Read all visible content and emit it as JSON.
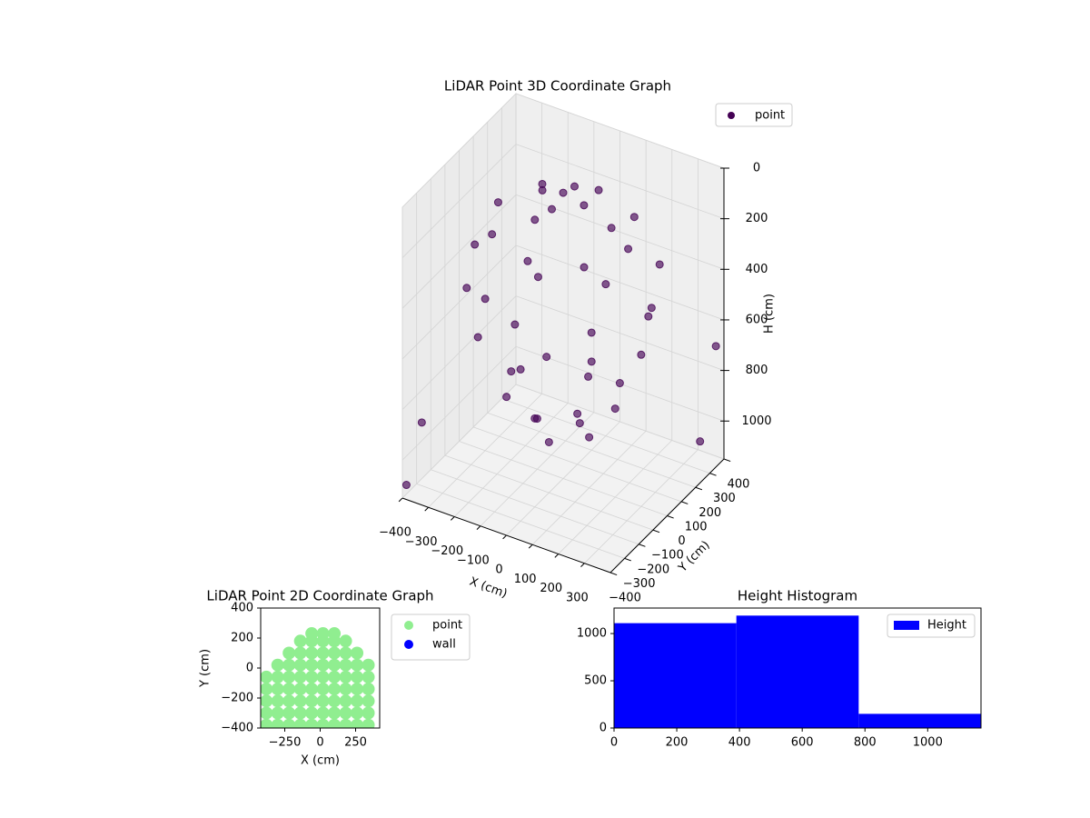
{
  "chart_data": [
    {
      "type": "scatter3d",
      "title": "LiDAR Point 3D Coordinate Graph",
      "x_label": "X (cm)",
      "y_label": "Y (cm)",
      "z_label": "H (cm)",
      "series": [
        {
          "name": "point",
          "color": "#440154",
          "x": [
            0,
            80,
            -80,
            0,
            0,
            250,
            177,
            0,
            -177,
            -250,
            -177,
            0,
            177,
            340,
            240,
            0,
            -240,
            -340,
            -240,
            0,
            240,
            300,
            212,
            0,
            -212,
            -300,
            -212,
            0,
            212,
            200,
            141,
            0,
            -141,
            -200,
            -141,
            0,
            141,
            100,
            0,
            -100,
            0,
            -380,
            -390,
            380,
            390
          ],
          "y": [
            0,
            0,
            0,
            80,
            -80,
            0,
            177,
            250,
            177,
            0,
            -177,
            -250,
            -177,
            0,
            240,
            340,
            240,
            0,
            -240,
            -340,
            -240,
            0,
            212,
            300,
            212,
            0,
            -212,
            -300,
            -212,
            0,
            141,
            200,
            141,
            0,
            -141,
            -200,
            -141,
            0,
            100,
            0,
            -100,
            -300,
            -390,
            380,
            250
          ],
          "h": [
            20,
            40,
            40,
            40,
            40,
            150,
            150,
            150,
            150,
            150,
            150,
            150,
            150,
            350,
            350,
            350,
            350,
            350,
            350,
            350,
            350,
            550,
            550,
            550,
            550,
            550,
            550,
            550,
            550,
            800,
            800,
            800,
            800,
            800,
            800,
            800,
            800,
            950,
            950,
            950,
            950,
            900,
            1100,
            700,
            1000
          ]
        }
      ],
      "xlim": [
        -400,
        400
      ],
      "ylim": [
        -400,
        400
      ],
      "zlim": [
        1150,
        0
      ],
      "xticks": [
        {
          "value": -400,
          "label": "−400"
        },
        {
          "value": -300,
          "label": "−300"
        },
        {
          "value": -200,
          "label": "−200"
        },
        {
          "value": -100,
          "label": "−100"
        },
        0,
        100,
        200,
        300
      ],
      "yticks": [
        {
          "value": -400,
          "label": "−400"
        },
        {
          "value": -300,
          "label": "−300"
        },
        {
          "value": -200,
          "label": "−200"
        },
        {
          "value": -100,
          "label": "−100"
        },
        0,
        100,
        200,
        300,
        400
      ],
      "zticks": [
        0,
        200,
        400,
        600,
        800,
        1000
      ],
      "grid": true,
      "legend": "upper right"
    },
    {
      "type": "scatter",
      "title": "LiDAR Point 2D Coordinate Graph",
      "x_label": "X (cm)",
      "y_label": "Y (cm)",
      "series": [
        {
          "name": "point",
          "color": "#90ee90",
          "x": [
            -60,
            20,
            100,
            -140,
            -60,
            20,
            100,
            180,
            -220,
            -140,
            -60,
            20,
            100,
            180,
            260,
            -300,
            -220,
            -140,
            -60,
            20,
            100,
            180,
            260,
            340,
            -380,
            -300,
            -220,
            -140,
            -60,
            20,
            100,
            180,
            260,
            340,
            -380,
            -300,
            -220,
            -140,
            -60,
            20,
            100,
            180,
            260,
            340,
            -380,
            -300,
            -220,
            -140,
            -60,
            20,
            100,
            180,
            260,
            340,
            -380,
            -300,
            -220,
            -140,
            -60,
            20,
            100,
            180,
            260,
            340,
            -380,
            -300,
            -220,
            -140,
            -60,
            20,
            100,
            180,
            260,
            340
          ],
          "y": [
            230,
            230,
            230,
            180,
            180,
            180,
            180,
            180,
            100,
            100,
            100,
            100,
            100,
            100,
            100,
            20,
            20,
            20,
            20,
            20,
            20,
            20,
            20,
            20,
            -60,
            -60,
            -60,
            -60,
            -60,
            -60,
            -60,
            -60,
            -60,
            -60,
            -140,
            -140,
            -140,
            -140,
            -140,
            -140,
            -140,
            -140,
            -140,
            -140,
            -220,
            -220,
            -220,
            -220,
            -220,
            -220,
            -220,
            -220,
            -220,
            -220,
            -300,
            -300,
            -300,
            -300,
            -300,
            -300,
            -300,
            -300,
            -300,
            -300,
            -380,
            -380,
            -380,
            -380,
            -380,
            -380,
            -380,
            -380,
            -380,
            -380
          ]
        },
        {
          "name": "wall",
          "color": "#0000ff",
          "x": [],
          "y": []
        }
      ],
      "xlim": [
        -420,
        420
      ],
      "ylim": [
        -400,
        400
      ],
      "xticks": [
        {
          "value": -250,
          "label": "−250"
        },
        0,
        250
      ],
      "yticks": [
        {
          "value": -400,
          "label": "−400"
        },
        {
          "value": -200,
          "label": "−200"
        },
        0,
        200,
        400
      ],
      "legend": "outside right"
    },
    {
      "type": "histogram",
      "title": "Height Histogram",
      "bins": [
        0,
        390,
        780,
        1170
      ],
      "series": [
        {
          "name": "Height",
          "color": "#0000ff",
          "values": [
            1110,
            1190,
            150
          ]
        }
      ],
      "xlim": [
        0,
        1170
      ],
      "ylim": [
        0,
        1270
      ],
      "xticks": [
        0,
        200,
        400,
        600,
        800,
        1000
      ],
      "yticks": [
        0,
        500,
        1000
      ],
      "legend": "upper right"
    }
  ]
}
